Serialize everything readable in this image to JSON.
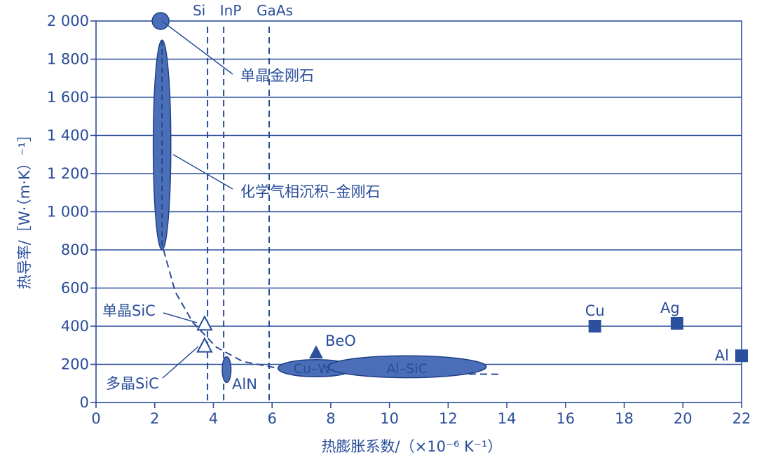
{
  "chart_data": {
    "type": "scatter",
    "title": "",
    "xlabel": "热膨胀系数/（×10⁻⁶ K⁻¹）",
    "ylabel": "热导率/［W·（m·K）⁻¹］",
    "xlim": [
      0,
      22
    ],
    "ylim": [
      0,
      2000
    ],
    "grid": {
      "x": false,
      "y": true
    },
    "x_ticks": [
      {
        "value": 0,
        "label": "0"
      },
      {
        "value": 2,
        "label": "2"
      },
      {
        "value": 4,
        "label": "4"
      },
      {
        "value": 6,
        "label": "6"
      },
      {
        "value": 8,
        "label": "8"
      },
      {
        "value": 10,
        "label": "10"
      },
      {
        "value": 12,
        "label": "12"
      },
      {
        "value": 14,
        "label": "14"
      },
      {
        "value": 16,
        "label": "16"
      },
      {
        "value": 18,
        "label": "18"
      },
      {
        "value": 20,
        "label": "20"
      },
      {
        "value": 22,
        "label": "22"
      }
    ],
    "y_ticks": [
      {
        "value": 0,
        "label": "0"
      },
      {
        "value": 200,
        "label": "200"
      },
      {
        "value": 400,
        "label": "400"
      },
      {
        "value": 600,
        "label": "600"
      },
      {
        "value": 800,
        "label": "800"
      },
      {
        "value": 1000,
        "label": "1 000"
      },
      {
        "value": 1200,
        "label": "1 200"
      },
      {
        "value": 1400,
        "label": "1 400"
      },
      {
        "value": 1600,
        "label": "1 600"
      },
      {
        "value": 1800,
        "label": "1 800"
      },
      {
        "value": 2000,
        "label": "2 000"
      }
    ],
    "reference_lines": [
      {
        "label": "Si",
        "x": 3.8
      },
      {
        "label": "InP",
        "x": 4.35
      },
      {
        "label": "GaAs",
        "x": 5.9
      }
    ],
    "squares": [
      {
        "label": "Cu",
        "x": 17.0,
        "y": 400
      },
      {
        "label": "Ag",
        "x": 19.8,
        "y": 415
      },
      {
        "label": "Al",
        "x": 22.0,
        "y": 245
      }
    ],
    "open_triangles": [
      {
        "x": 3.7,
        "y": 410
      },
      {
        "x": 3.7,
        "y": 295
      }
    ],
    "filled_triangles": [
      {
        "label": "BeO",
        "x": 7.5,
        "y": 260
      }
    ],
    "circles": [
      {
        "x": 2.2,
        "y": 2000
      }
    ],
    "ellipses": [
      {
        "label": "化学气相沉积–金刚石",
        "x_center": 2.25,
        "y_min": 800,
        "y_max": 1900,
        "x_min": 1.95,
        "x_max": 2.55
      },
      {
        "label": "AlN",
        "x_center": 4.45,
        "y_min": 105,
        "y_max": 240,
        "x_min": 4.3,
        "x_max": 4.6
      },
      {
        "label": "Cu–W",
        "x_center": 7.8,
        "y_min": 135,
        "y_max": 225,
        "x_min": 6.2,
        "x_max": 8.8
      },
      {
        "label": "Al–SiC",
        "x_center": 10.6,
        "y_min": 130,
        "y_max": 245,
        "x_min": 7.9,
        "x_max": 13.3
      }
    ],
    "trend_curve": {
      "style": "dashed",
      "points": [
        [
          2.3,
          800
        ],
        [
          2.7,
          580
        ],
        [
          3.3,
          420
        ],
        [
          4.1,
          290
        ],
        [
          5.0,
          215
        ],
        [
          6.2,
          180
        ],
        [
          8.0,
          165
        ],
        [
          10.0,
          155
        ],
        [
          12.0,
          150
        ],
        [
          13.8,
          148
        ]
      ]
    },
    "annotations": [
      {
        "text": "单晶金刚石",
        "target": {
          "x": 2.2,
          "y": 2000
        }
      },
      {
        "text": "化学气相沉积–金刚石",
        "target": {
          "x": 2.3,
          "y": 1300
        }
      },
      {
        "text": "单晶SiC",
        "target": {
          "x": 3.7,
          "y": 410
        }
      },
      {
        "text": "多晶SiC",
        "target": {
          "x": 3.7,
          "y": 295
        }
      },
      {
        "text": "AlN",
        "target": {
          "x": 4.45,
          "y": 175
        }
      }
    ],
    "colors": {
      "ink": "#2a4d9a",
      "fill": "#4a6fb8",
      "mark": "#2c4f9e"
    }
  }
}
